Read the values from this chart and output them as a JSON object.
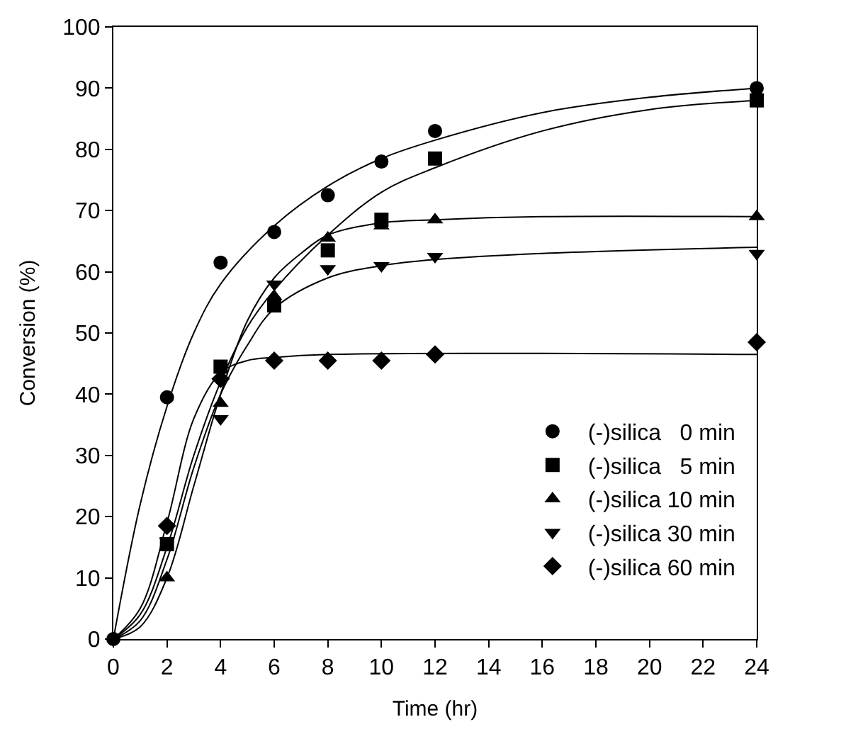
{
  "chart_data": {
    "type": "scatter",
    "xlabel": "Time (hr)",
    "ylabel": "Conversion (%)",
    "xlim": [
      0,
      24
    ],
    "xticks": [
      0,
      2,
      4,
      6,
      8,
      10,
      12,
      14,
      16,
      18,
      20,
      22,
      24
    ],
    "ylim": [
      0,
      100
    ],
    "yticks": [
      0,
      10,
      20,
      30,
      40,
      50,
      60,
      70,
      80,
      90,
      100
    ],
    "legend": "bottom right",
    "series": [
      {
        "name": "(-)silica   0 min",
        "color": "#000000",
        "marker": "circle",
        "x": [
          0,
          2,
          4,
          6,
          8,
          10,
          12,
          24
        ],
        "values": [
          0,
          39.5,
          61.5,
          66.5,
          72.5,
          78,
          83,
          90
        ]
      },
      {
        "name": "(-)silica   5 min",
        "color": "#000000",
        "marker": "square",
        "x": [
          2,
          4,
          6,
          8,
          10,
          12,
          24
        ],
        "values": [
          15.5,
          44.5,
          54.5,
          63.5,
          68.5,
          78.5,
          88
        ]
      },
      {
        "name": "(-)silica 10 min",
        "color": "#000000",
        "marker": "triangle",
        "x": [
          2,
          4,
          6,
          8,
          10,
          12,
          24
        ],
        "values": [
          10,
          38.5,
          56,
          65.5,
          67.5,
          68.5,
          69
        ]
      },
      {
        "name": "(-)silica 30 min",
        "color": "#000000",
        "x": [
          2,
          4,
          6,
          8,
          10,
          12,
          24
        ],
        "values": [
          16,
          36,
          58,
          60.5,
          61,
          62.5,
          63
        ]
      },
      {
        "name": "(-)silica 60 min",
        "color": "#000000",
        "marker": "diamond",
        "x": [
          2,
          4,
          6,
          8,
          10,
          12,
          24
        ],
        "values": [
          18.5,
          42.5,
          45.5,
          45.5,
          45.5,
          46.5,
          48.5
        ]
      },
      {
        "type": "line",
        "color": "#000000",
        "x": [
          0,
          1,
          2,
          3,
          4,
          6,
          8,
          10,
          12,
          16,
          20,
          24
        ],
        "values": [
          0,
          22,
          38,
          50,
          58,
          67.5,
          74,
          78.5,
          81.5,
          86,
          88.5,
          90
        ]
      },
      {
        "type": "line",
        "color": "#000000",
        "x": [
          0,
          1,
          2,
          3,
          4,
          5,
          6,
          8,
          10,
          12,
          16,
          20,
          24
        ],
        "values": [
          0,
          4,
          15,
          30,
          42,
          51,
          57,
          66,
          73,
          77,
          83,
          86.5,
          88
        ]
      },
      {
        "type": "line",
        "color": "#000000",
        "x": [
          0,
          1,
          2,
          3,
          4,
          5,
          6,
          7,
          8,
          10,
          12,
          16,
          24
        ],
        "values": [
          0,
          2,
          10,
          25,
          40,
          52,
          59,
          63,
          66,
          68,
          68.5,
          69,
          69
        ]
      },
      {
        "type": "line",
        "color": "#000000",
        "x": [
          0,
          1,
          2,
          3,
          4,
          5,
          6,
          8,
          10,
          12,
          16,
          24
        ],
        "values": [
          0,
          3,
          13,
          28,
          40,
          48,
          54,
          59,
          61,
          62,
          63,
          64
        ]
      },
      {
        "type": "line",
        "color": "#000000",
        "x": [
          0,
          1,
          2,
          3,
          4,
          5,
          6,
          8,
          24
        ],
        "values": [
          0,
          5,
          19,
          36,
          43.5,
          45.5,
          46,
          46.5,
          46.5
        ]
      }
    ]
  }
}
